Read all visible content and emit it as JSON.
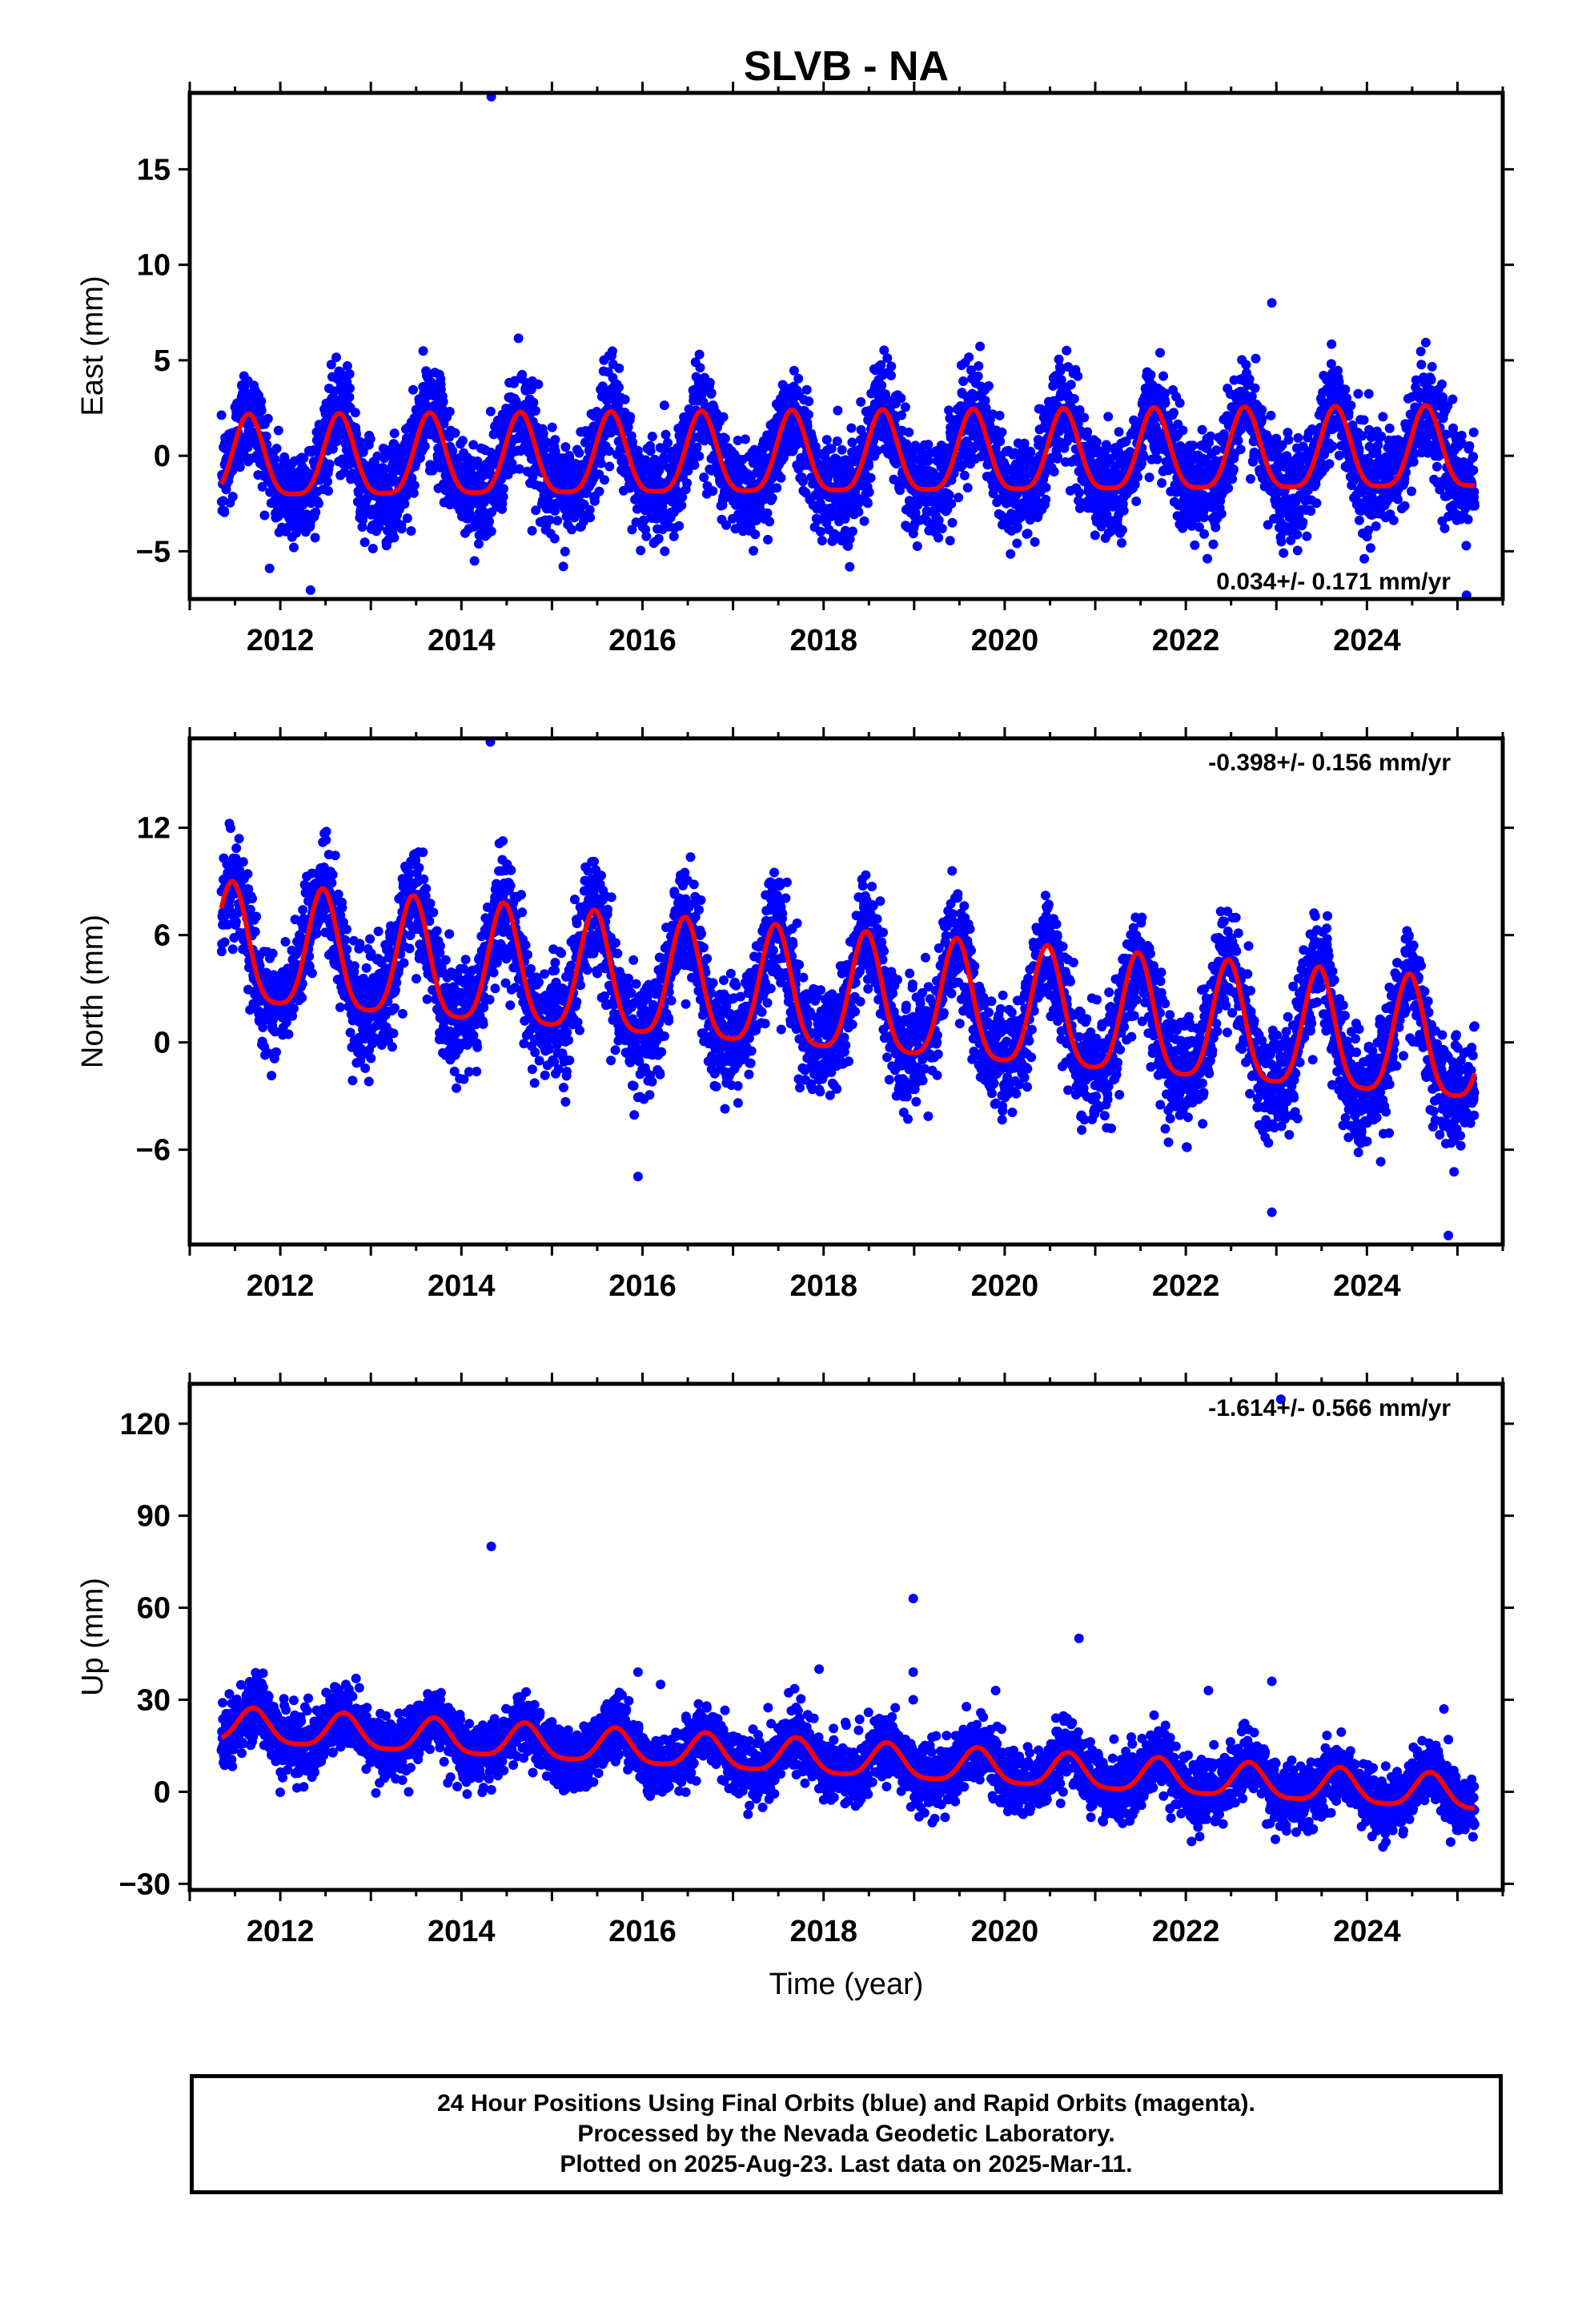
{
  "title": "SLVB - NA",
  "chart_data": [
    {
      "type": "scatter",
      "panel": "east",
      "ylabel": "East (mm)",
      "xlabel": "",
      "xlim": [
        2011.0,
        2025.5
      ],
      "ylim": [
        -7.5,
        19.0
      ],
      "yticks": [
        -5,
        0,
        5,
        10,
        15
      ],
      "ytick_labels": [
        "−5",
        "0",
        "5",
        "10",
        "15"
      ],
      "xticks": [
        2012,
        2014,
        2016,
        2018,
        2020,
        2022,
        2024
      ],
      "xtick_labels": [
        "2012",
        "2014",
        "2016",
        "2018",
        "2020",
        "2022",
        "2024"
      ],
      "rate_label": "0.034+/- 0.171 mm/yr",
      "rate_label_position": "bottom-right",
      "data_start": 2011.35,
      "data_end": 2025.19,
      "model": {
        "rate": 0.034,
        "annual_amplitude": 2.1,
        "annual_peak_phase": 0.65,
        "semiannual_amplitude": 0.5,
        "offset": -0.2
      },
      "scatter_spread": 1.3,
      "outliers": [
        {
          "x": 2014.33,
          "y": 18.8
        },
        {
          "x": 2022.95,
          "y": 8.0
        },
        {
          "x": 2025.1,
          "y": -7.3
        }
      ],
      "series": [
        {
          "name": "Final Orbits",
          "color": "#0000ff",
          "kind": "points"
        },
        {
          "name": "Model",
          "color": "#ff0000",
          "kind": "line"
        }
      ]
    },
    {
      "type": "scatter",
      "panel": "north",
      "ylabel": "North (mm)",
      "xlabel": "",
      "xlim": [
        2011.0,
        2025.5
      ],
      "ylim": [
        -11.3,
        17.0
      ],
      "yticks": [
        -6,
        0,
        6,
        12
      ],
      "ytick_labels": [
        "−6",
        "0",
        "6",
        "12"
      ],
      "xticks": [
        2012,
        2014,
        2016,
        2018,
        2020,
        2022,
        2024
      ],
      "xtick_labels": [
        "2012",
        "2014",
        "2016",
        "2018",
        "2020",
        "2022",
        "2024"
      ],
      "rate_label": "-0.398+/- 0.156 mm/yr",
      "rate_label_position": "top-right",
      "data_start": 2011.35,
      "data_end": 2025.19,
      "model": {
        "rate": -0.398,
        "annual_amplitude": 3.3,
        "annual_peak_phase": 0.47,
        "semiannual_amplitude": 0.7,
        "offset": 2.4
      },
      "scatter_spread": 1.5,
      "outliers": [
        {
          "x": 2014.32,
          "y": 16.8
        },
        {
          "x": 2015.95,
          "y": -7.5
        },
        {
          "x": 2022.95,
          "y": -9.5
        },
        {
          "x": 2024.9,
          "y": -10.8
        }
      ],
      "series": [
        {
          "name": "Final Orbits",
          "color": "#0000ff",
          "kind": "points"
        },
        {
          "name": "Model",
          "color": "#ff0000",
          "kind": "line"
        }
      ]
    },
    {
      "type": "scatter",
      "panel": "up",
      "ylabel": "Up (mm)",
      "xlabel": "Time (year)",
      "xlim": [
        2011.0,
        2025.5
      ],
      "ylim": [
        -32.0,
        133.0
      ],
      "yticks": [
        -30,
        0,
        30,
        60,
        90,
        120
      ],
      "ytick_labels": [
        "−30",
        "0",
        "30",
        "60",
        "90",
        "120"
      ],
      "xticks": [
        2012,
        2014,
        2016,
        2018,
        2020,
        2022,
        2024
      ],
      "xtick_labels": [
        "2012",
        "2014",
        "2016",
        "2018",
        "2020",
        "2022",
        "2024"
      ],
      "rate_label": "-1.614+/- 0.566 mm/yr",
      "rate_label_position": "top-right",
      "data_start": 2011.35,
      "data_end": 2025.19,
      "model": {
        "rate": -1.614,
        "annual_amplitude": 5.5,
        "annual_peak_phase": 0.7,
        "semiannual_amplitude": 1.2,
        "offset": 10.5
      },
      "scatter_spread": 5.0,
      "outliers": [
        {
          "x": 2014.33,
          "y": 80
        },
        {
          "x": 2015.95,
          "y": 39
        },
        {
          "x": 2016.2,
          "y": 35
        },
        {
          "x": 2017.95,
          "y": 40
        },
        {
          "x": 2018.99,
          "y": 63
        },
        {
          "x": 2018.99,
          "y": 39
        },
        {
          "x": 2018.99,
          "y": 30
        },
        {
          "x": 2019.9,
          "y": 33
        },
        {
          "x": 2020.82,
          "y": 50
        },
        {
          "x": 2022.25,
          "y": 33
        },
        {
          "x": 2022.95,
          "y": 36
        },
        {
          "x": 2023.05,
          "y": 128
        },
        {
          "x": 2024.85,
          "y": 27
        },
        {
          "x": 2024.9,
          "y": 17
        }
      ],
      "series": [
        {
          "name": "Final Orbits",
          "color": "#0000ff",
          "kind": "points"
        },
        {
          "name": "Model",
          "color": "#ff0000",
          "kind": "line"
        }
      ]
    }
  ],
  "caption": {
    "line1": "24 Hour Positions Using Final Orbits (blue) and Rapid Orbits (magenta).",
    "line2": "Processed by the Nevada Geodetic Laboratory.",
    "line3": "Plotted on 2025-Aug-23. Last data on 2025-Mar-11."
  }
}
